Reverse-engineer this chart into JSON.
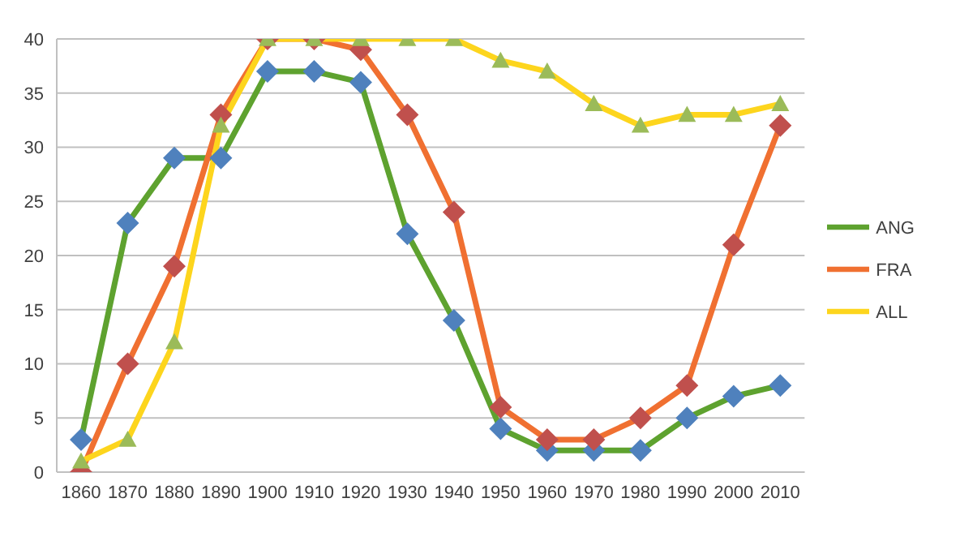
{
  "chart_data": {
    "type": "line",
    "categories": [
      "1860",
      "1870",
      "1880",
      "1890",
      "1900",
      "1910",
      "1920",
      "1930",
      "1940",
      "1950",
      "1960",
      "1970",
      "1980",
      "1990",
      "2000",
      "2010"
    ],
    "series": [
      {
        "name": "ANG",
        "color": "#5ea22f",
        "marker": "diamond",
        "colors": [
          "#4f81bd",
          "#4f81bd",
          "#4f81bd",
          "#4f81bd",
          "#4f81bd",
          "#4f81bd",
          "#4f81bd",
          "#4f81bd",
          "#4f81bd",
          "#4f81bd",
          "#4f81bd",
          "#4f81bd",
          "#4f81bd",
          "#4f81bd",
          "#4f81bd",
          "#4f81bd"
        ],
        "values": [
          3,
          23,
          29,
          29,
          37,
          37,
          36,
          22,
          14,
          4,
          2,
          2,
          2,
          5,
          7,
          8
        ]
      },
      {
        "name": "FRA",
        "color": "#f07031",
        "marker": "diamond",
        "colors": [
          "#c0504d",
          "#c0504d",
          "#c0504d",
          "#c0504d",
          "#c0504d",
          "#c0504d",
          "#c0504d",
          "#c0504d",
          "#c0504d",
          "#c0504d",
          "#c0504d",
          "#c0504d",
          "#c0504d",
          "#c0504d",
          "#c0504d",
          "#c0504d"
        ],
        "values": [
          0,
          10,
          19,
          33,
          40,
          40,
          39,
          33,
          24,
          6,
          3,
          3,
          5,
          8,
          21,
          32
        ]
      },
      {
        "name": "ALL",
        "color": "#fdd51d",
        "marker": "triangle",
        "colors": [
          "#9bbb59",
          "#9bbb59",
          "#9bbb59",
          "#9bbb59",
          "#9bbb59",
          "#9bbb59",
          "#9bbb59",
          "#9bbb59",
          "#9bbb59",
          "#9bbb59",
          "#9bbb59",
          "#9bbb59",
          "#9bbb59",
          "#9bbb59",
          "#9bbb59",
          "#9bbb59"
        ],
        "values": [
          1,
          3,
          12,
          32,
          40,
          40,
          40,
          40,
          40,
          38,
          37,
          34,
          32,
          33,
          33,
          34
        ]
      }
    ],
    "ylim": [
      0,
      40
    ],
    "yticks": [
      0,
      5,
      10,
      15,
      20,
      25,
      30,
      35,
      40
    ],
    "grid": "y",
    "legend": "right"
  }
}
